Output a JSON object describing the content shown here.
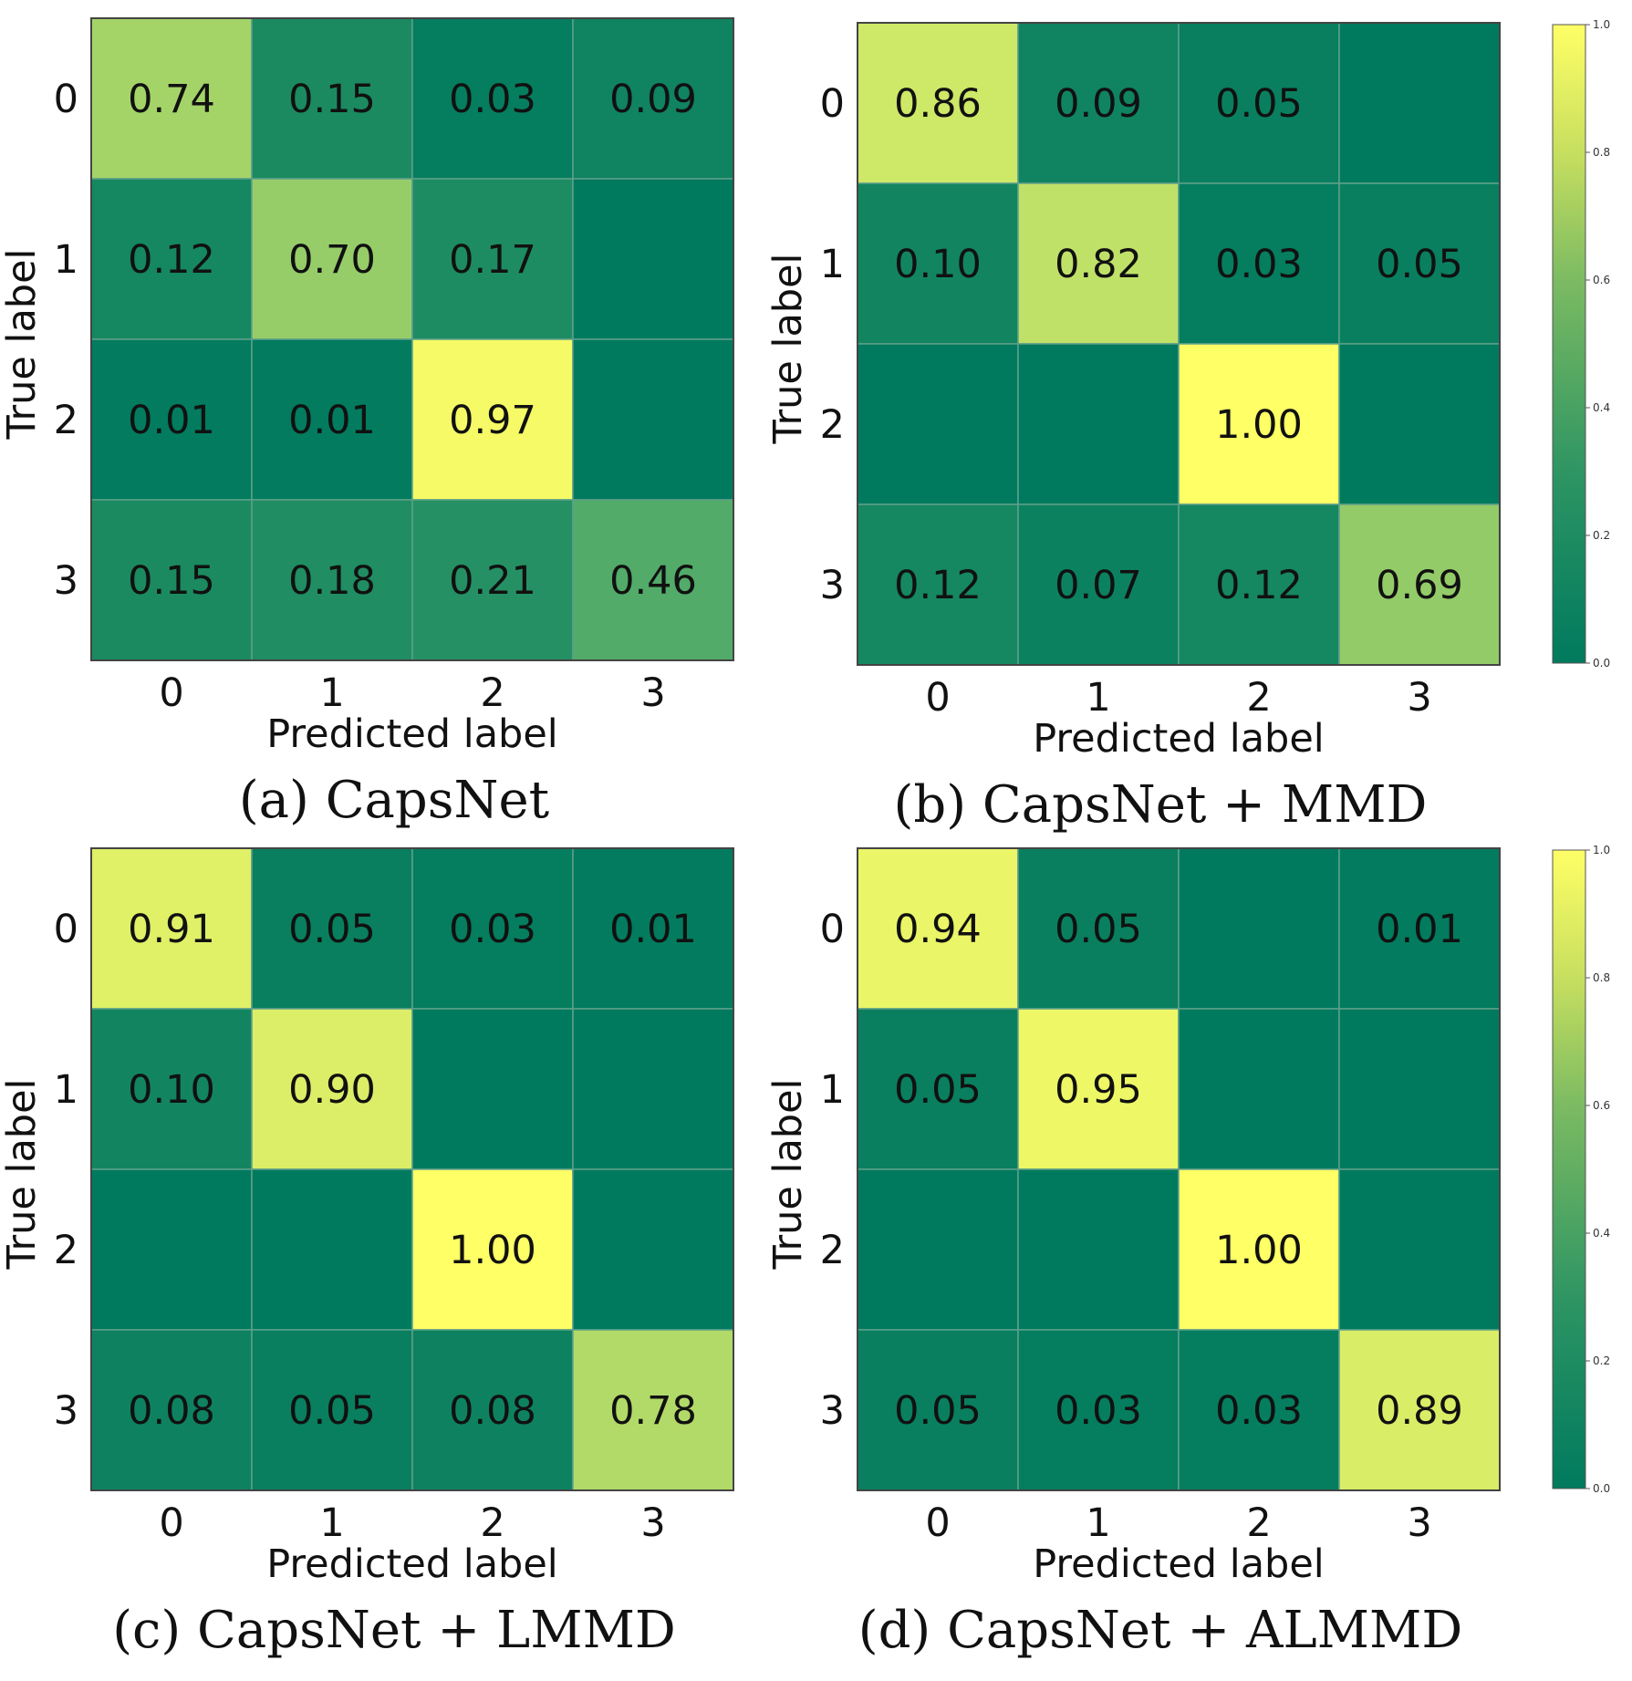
{
  "colormap": {
    "low": "#007a5e",
    "mid": "#62b46a",
    "high": "#ffff66"
  },
  "grid_color": "#5fa08a",
  "chart_data": [
    {
      "type": "heatmap",
      "caption": "(a) CapsNet",
      "xlabel": "Predicted label",
      "ylabel": "True label",
      "x_ticks": [
        "0",
        "1",
        "2",
        "3"
      ],
      "y_ticks": [
        "0",
        "1",
        "2",
        "3"
      ],
      "values": [
        [
          0.74,
          0.15,
          0.03,
          0.09
        ],
        [
          0.12,
          0.7,
          0.17,
          0.0
        ],
        [
          0.01,
          0.01,
          0.97,
          0.0
        ],
        [
          0.15,
          0.18,
          0.21,
          0.46
        ]
      ],
      "labels": [
        [
          "0.74",
          "0.15",
          "0.03",
          "0.09"
        ],
        [
          "0.12",
          "0.70",
          "0.17",
          ""
        ],
        [
          "0.01",
          "0.01",
          "0.97",
          ""
        ],
        [
          "0.15",
          "0.18",
          "0.21",
          "0.46"
        ]
      ],
      "colorbar": false
    },
    {
      "type": "heatmap",
      "caption": "(b) CapsNet + MMD",
      "xlabel": "Predicted label",
      "ylabel": "True label",
      "x_ticks": [
        "0",
        "1",
        "2",
        "3"
      ],
      "y_ticks": [
        "0",
        "1",
        "2",
        "3"
      ],
      "values": [
        [
          0.86,
          0.09,
          0.05,
          0.0
        ],
        [
          0.1,
          0.82,
          0.03,
          0.05
        ],
        [
          0.0,
          0.0,
          1.0,
          0.0
        ],
        [
          0.12,
          0.07,
          0.12,
          0.69
        ]
      ],
      "labels": [
        [
          "0.86",
          "0.09",
          "0.05",
          ""
        ],
        [
          "0.10",
          "0.82",
          "0.03",
          "0.05"
        ],
        [
          "",
          "",
          "1.00",
          ""
        ],
        [
          "0.12",
          "0.07",
          "0.12",
          "0.69"
        ]
      ],
      "colorbar": true,
      "colorbar_ticks": [
        "1.0",
        "0.8",
        "0.6",
        "0.4",
        "0.2",
        "0.0"
      ]
    },
    {
      "type": "heatmap",
      "caption": "(c) CapsNet + LMMD",
      "xlabel": "Predicted label",
      "ylabel": "True label",
      "x_ticks": [
        "0",
        "1",
        "2",
        "3"
      ],
      "y_ticks": [
        "0",
        "1",
        "2",
        "3"
      ],
      "values": [
        [
          0.91,
          0.05,
          0.03,
          0.01
        ],
        [
          0.1,
          0.9,
          0.0,
          0.0
        ],
        [
          0.0,
          0.0,
          1.0,
          0.0
        ],
        [
          0.08,
          0.05,
          0.08,
          0.78
        ]
      ],
      "labels": [
        [
          "0.91",
          "0.05",
          "0.03",
          "0.01"
        ],
        [
          "0.10",
          "0.90",
          "",
          ""
        ],
        [
          "",
          "",
          "1.00",
          ""
        ],
        [
          "0.08",
          "0.05",
          "0.08",
          "0.78"
        ]
      ],
      "colorbar": false
    },
    {
      "type": "heatmap",
      "caption": "(d) CapsNet + ALMMD",
      "xlabel": "Predicted label",
      "ylabel": "True label",
      "x_ticks": [
        "0",
        "1",
        "2",
        "3"
      ],
      "y_ticks": [
        "0",
        "1",
        "2",
        "3"
      ],
      "values": [
        [
          0.94,
          0.05,
          0.0,
          0.01
        ],
        [
          0.05,
          0.95,
          0.0,
          0.0
        ],
        [
          0.0,
          0.0,
          1.0,
          0.0
        ],
        [
          0.05,
          0.03,
          0.03,
          0.89
        ]
      ],
      "labels": [
        [
          "0.94",
          "0.05",
          "",
          "0.01"
        ],
        [
          "0.05",
          "0.95",
          "",
          ""
        ],
        [
          "",
          "",
          "1.00",
          ""
        ],
        [
          "0.05",
          "0.03",
          "0.03",
          "0.89"
        ]
      ],
      "colorbar": true,
      "colorbar_ticks": [
        "1.0",
        "0.8",
        "0.6",
        "0.4",
        "0.2",
        "0.0"
      ]
    }
  ]
}
